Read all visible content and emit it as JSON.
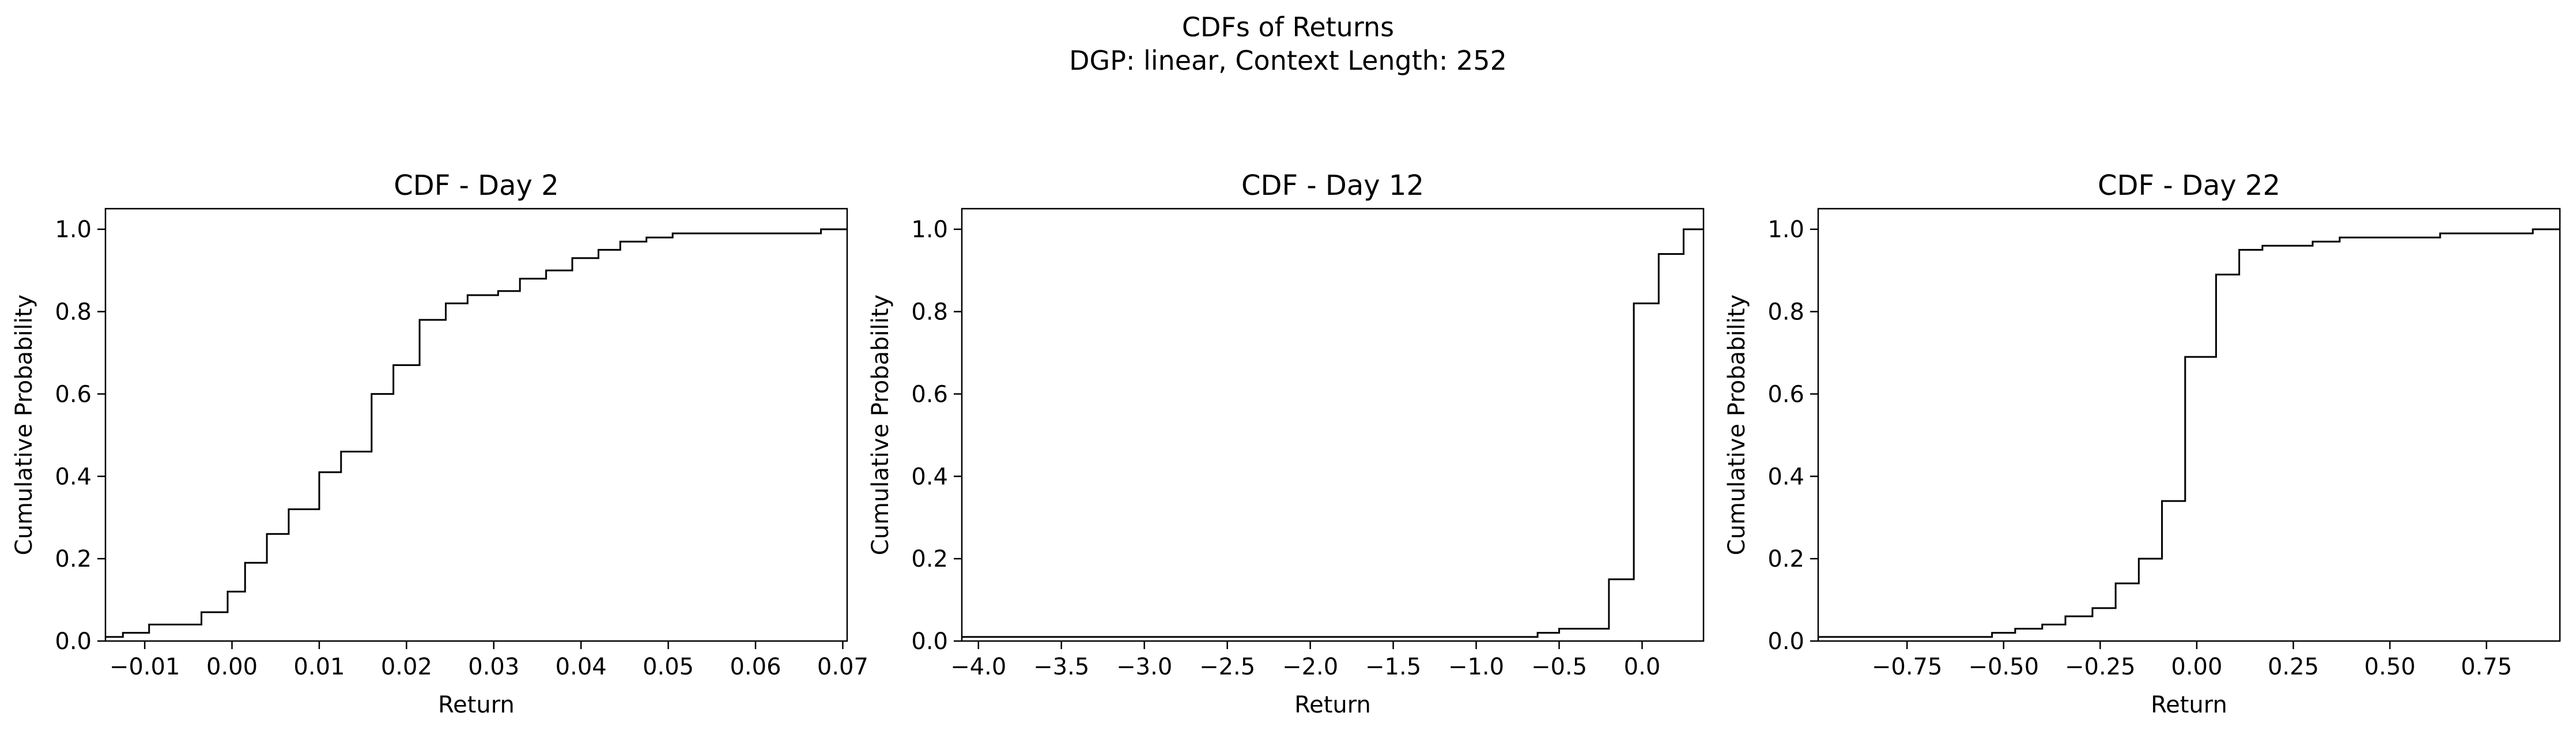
{
  "figure": {
    "suptitle_line1": "CDFs of Returns",
    "suptitle_line2": "DGP: linear, Context Length: 252",
    "line_color": "#000000"
  },
  "chart_data": [
    {
      "type": "line",
      "drawstyle": "steps-post",
      "title": "CDF - Day 2",
      "xlabel": "Return",
      "ylabel": "Cumulative Probability",
      "xlim": [
        -0.0145,
        0.0705
      ],
      "ylim": [
        0,
        1.05
      ],
      "xticks": [
        -0.01,
        0.0,
        0.01,
        0.02,
        0.03,
        0.04,
        0.05,
        0.06,
        0.07
      ],
      "xtick_labels": [
        "−0.01",
        "0.00",
        "0.01",
        "0.02",
        "0.03",
        "0.04",
        "0.05",
        "0.06",
        "0.07"
      ],
      "yticks": [
        0.0,
        0.2,
        0.4,
        0.6,
        0.8,
        1.0
      ],
      "ytick_labels": [
        "0.0",
        "0.2",
        "0.4",
        "0.6",
        "0.8",
        "1.0"
      ],
      "grid": false,
      "series": [
        {
          "x": [
            -0.0145,
            -0.0125,
            -0.0095,
            -0.0035,
            -0.0005,
            0.0015,
            0.004,
            0.0065,
            0.01,
            0.0125,
            0.016,
            0.0185,
            0.0215,
            0.0245,
            0.027,
            0.0305,
            0.033,
            0.036,
            0.039,
            0.042,
            0.0445,
            0.0475,
            0.0505,
            0.0675,
            0.0705
          ],
          "y": [
            0.01,
            0.02,
            0.04,
            0.07,
            0.12,
            0.19,
            0.26,
            0.32,
            0.41,
            0.46,
            0.6,
            0.67,
            0.78,
            0.82,
            0.84,
            0.85,
            0.88,
            0.9,
            0.93,
            0.95,
            0.97,
            0.98,
            0.99,
            1.0,
            1.0
          ]
        }
      ]
    },
    {
      "type": "line",
      "drawstyle": "steps-post",
      "title": "CDF - Day 12",
      "xlabel": "Return",
      "ylabel": "Cumulative Probability",
      "xlim": [
        -4.1,
        0.37
      ],
      "ylim": [
        0,
        1.05
      ],
      "xticks": [
        -4.0,
        -3.5,
        -3.0,
        -2.5,
        -2.0,
        -1.5,
        -1.0,
        -0.5,
        0.0
      ],
      "xtick_labels": [
        "−4.0",
        "−3.5",
        "−3.0",
        "−2.5",
        "−2.0",
        "−1.5",
        "−1.0",
        "−0.5",
        "0.0"
      ],
      "yticks": [
        0.0,
        0.2,
        0.4,
        0.6,
        0.8,
        1.0
      ],
      "ytick_labels": [
        "0.0",
        "0.2",
        "0.4",
        "0.6",
        "0.8",
        "1.0"
      ],
      "grid": false,
      "series": [
        {
          "x": [
            -4.1,
            -0.63,
            -0.5,
            -0.2,
            -0.05,
            0.1,
            0.25,
            0.37
          ],
          "y": [
            0.01,
            0.02,
            0.03,
            0.15,
            0.82,
            0.94,
            1.0,
            1.0
          ]
        }
      ]
    },
    {
      "type": "line",
      "drawstyle": "steps-post",
      "title": "CDF - Day 22",
      "xlabel": "Return",
      "ylabel": "Cumulative Probability",
      "xlim": [
        -0.98,
        0.94
      ],
      "ylim": [
        0,
        1.05
      ],
      "xticks": [
        -0.75,
        -0.5,
        -0.25,
        0.0,
        0.25,
        0.5,
        0.75
      ],
      "xtick_labels": [
        "−0.75",
        "−0.50",
        "−0.25",
        "0.00",
        "0.25",
        "0.50",
        "0.75"
      ],
      "yticks": [
        0.0,
        0.2,
        0.4,
        0.6,
        0.8,
        1.0
      ],
      "ytick_labels": [
        "0.0",
        "0.2",
        "0.4",
        "0.6",
        "0.8",
        "1.0"
      ],
      "grid": false,
      "series": [
        {
          "x": [
            -0.98,
            -0.53,
            -0.47,
            -0.4,
            -0.34,
            -0.27,
            -0.21,
            -0.15,
            -0.09,
            -0.03,
            0.0,
            0.05,
            0.11,
            0.17,
            0.24,
            0.3,
            0.37,
            0.63,
            0.87,
            0.94
          ],
          "y": [
            0.01,
            0.02,
            0.03,
            0.04,
            0.06,
            0.08,
            0.14,
            0.2,
            0.34,
            0.69,
            0.69,
            0.89,
            0.95,
            0.96,
            0.96,
            0.97,
            0.98,
            0.99,
            1.0,
            1.0
          ]
        }
      ]
    }
  ]
}
